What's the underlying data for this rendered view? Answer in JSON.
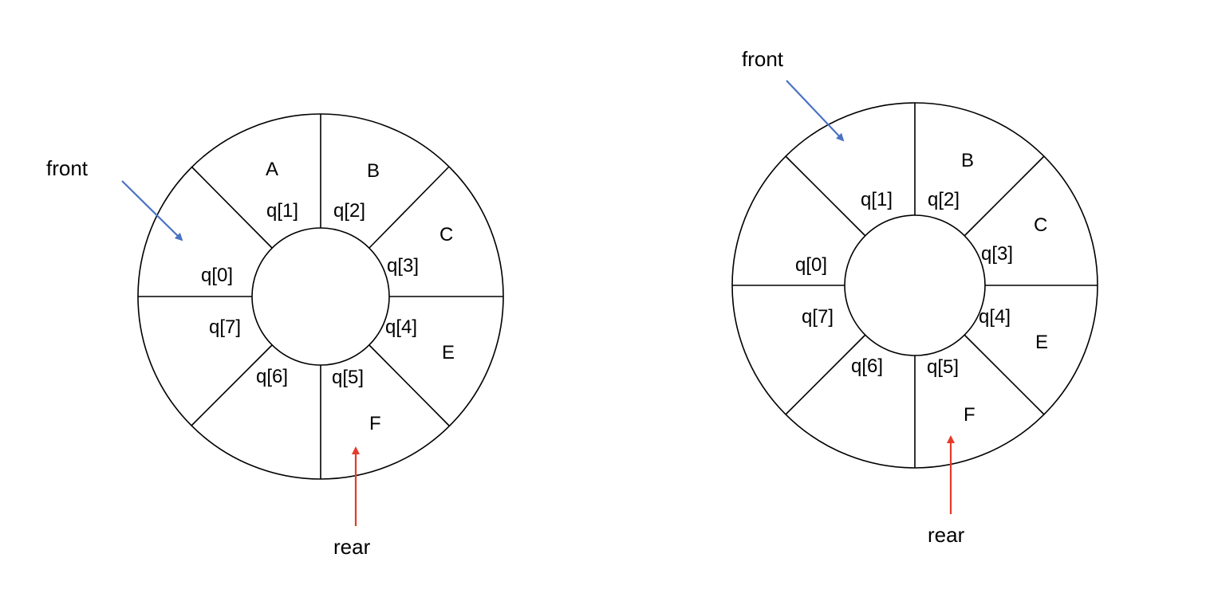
{
  "colors": {
    "front_arrow": "#4a72c4",
    "rear_arrow": "#e53a2a",
    "outline": "#000000"
  },
  "queues": [
    {
      "cells": [
        {
          "index": "q[0]",
          "value": ""
        },
        {
          "index": "q[1]",
          "value": "A"
        },
        {
          "index": "q[2]",
          "value": "B"
        },
        {
          "index": "q[3]",
          "value": "C"
        },
        {
          "index": "q[4]",
          "value": "E"
        },
        {
          "index": "q[5]",
          "value": "F"
        },
        {
          "index": "q[6]",
          "value": ""
        },
        {
          "index": "q[7]",
          "value": ""
        }
      ],
      "front_label": "front",
      "rear_label": "rear"
    },
    {
      "cells": [
        {
          "index": "q[0]",
          "value": ""
        },
        {
          "index": "q[1]",
          "value": ""
        },
        {
          "index": "q[2]",
          "value": "B"
        },
        {
          "index": "q[3]",
          "value": "C"
        },
        {
          "index": "q[4]",
          "value": "E"
        },
        {
          "index": "q[5]",
          "value": "F"
        },
        {
          "index": "q[6]",
          "value": ""
        },
        {
          "index": "q[7]",
          "value": ""
        }
      ],
      "front_label": "front",
      "rear_label": "rear"
    }
  ]
}
